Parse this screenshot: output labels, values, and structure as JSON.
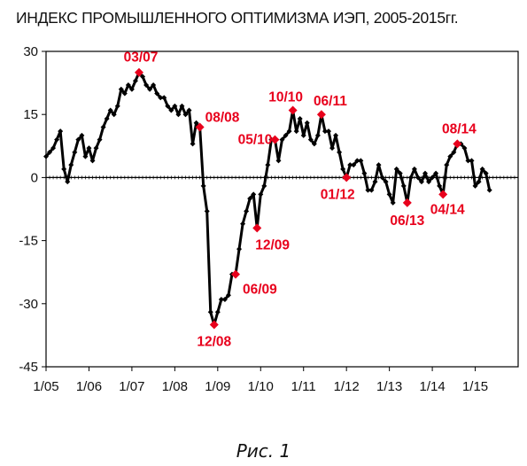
{
  "chart_data": {
    "type": "line",
    "title": "ИНДЕКС ПРОМЫШЛЕННОГО ОПТИМИЗМА ИЭП, 2005-2015гг.",
    "xlabel": "",
    "ylabel": "",
    "ylim": [
      -45,
      30
    ],
    "yticks": [
      30,
      15,
      0,
      -15,
      -30,
      -45
    ],
    "xticks": [
      "1/05",
      "1/06",
      "1/07",
      "1/08",
      "1/09",
      "1/10",
      "1/11",
      "1/12",
      "1/13",
      "1/14",
      "1/15"
    ],
    "grid": false,
    "legend": "none",
    "line_color": "#000000",
    "marker_color": "#000000",
    "highlight_color": "#e8001c",
    "series": [
      {
        "values": [
          {
            "x": "2005-01",
            "y": 5
          },
          {
            "x": "2005-02",
            "y": 6
          },
          {
            "x": "2005-03",
            "y": 7
          },
          {
            "x": "2005-04",
            "y": 9
          },
          {
            "x": "2005-05",
            "y": 11
          },
          {
            "x": "2005-06",
            "y": 2
          },
          {
            "x": "2005-07",
            "y": -1
          },
          {
            "x": "2005-08",
            "y": 3
          },
          {
            "x": "2005-09",
            "y": 6
          },
          {
            "x": "2005-10",
            "y": 9
          },
          {
            "x": "2005-11",
            "y": 10
          },
          {
            "x": "2005-12",
            "y": 5
          },
          {
            "x": "2006-01",
            "y": 7
          },
          {
            "x": "2006-02",
            "y": 4
          },
          {
            "x": "2006-03",
            "y": 7
          },
          {
            "x": "2006-04",
            "y": 9
          },
          {
            "x": "2006-05",
            "y": 12
          },
          {
            "x": "2006-06",
            "y": 14
          },
          {
            "x": "2006-07",
            "y": 16
          },
          {
            "x": "2006-08",
            "y": 15
          },
          {
            "x": "2006-09",
            "y": 17
          },
          {
            "x": "2006-10",
            "y": 21
          },
          {
            "x": "2006-11",
            "y": 20
          },
          {
            "x": "2006-12",
            "y": 22
          },
          {
            "x": "2007-01",
            "y": 21
          },
          {
            "x": "2007-02",
            "y": 23
          },
          {
            "x": "2007-03",
            "y": 25
          },
          {
            "x": "2007-04",
            "y": 24
          },
          {
            "x": "2007-05",
            "y": 22
          },
          {
            "x": "2007-06",
            "y": 21
          },
          {
            "x": "2007-07",
            "y": 22
          },
          {
            "x": "2007-08",
            "y": 20
          },
          {
            "x": "2007-09",
            "y": 19
          },
          {
            "x": "2007-10",
            "y": 19
          },
          {
            "x": "2007-11",
            "y": 17
          },
          {
            "x": "2007-12",
            "y": 16
          },
          {
            "x": "2008-01",
            "y": 17
          },
          {
            "x": "2008-02",
            "y": 15
          },
          {
            "x": "2008-03",
            "y": 17
          },
          {
            "x": "2008-04",
            "y": 15
          },
          {
            "x": "2008-05",
            "y": 16
          },
          {
            "x": "2008-06",
            "y": 8
          },
          {
            "x": "2008-07",
            "y": 13
          },
          {
            "x": "2008-08",
            "y": 12
          },
          {
            "x": "2008-09",
            "y": -2
          },
          {
            "x": "2008-10",
            "y": -8
          },
          {
            "x": "2008-11",
            "y": -32
          },
          {
            "x": "2008-12",
            "y": -35
          },
          {
            "x": "2009-01",
            "y": -32
          },
          {
            "x": "2009-02",
            "y": -29
          },
          {
            "x": "2009-03",
            "y": -29
          },
          {
            "x": "2009-04",
            "y": -28
          },
          {
            "x": "2009-05",
            "y": -23
          },
          {
            "x": "2009-06",
            "y": -23
          },
          {
            "x": "2009-07",
            "y": -17
          },
          {
            "x": "2009-08",
            "y": -11
          },
          {
            "x": "2009-09",
            "y": -8
          },
          {
            "x": "2009-10",
            "y": -5
          },
          {
            "x": "2009-11",
            "y": -4
          },
          {
            "x": "2009-12",
            "y": -12
          },
          {
            "x": "2010-01",
            "y": -4
          },
          {
            "x": "2010-02",
            "y": -2
          },
          {
            "x": "2010-03",
            "y": 3
          },
          {
            "x": "2010-04",
            "y": 9
          },
          {
            "x": "2010-05",
            "y": 9
          },
          {
            "x": "2010-06",
            "y": 4
          },
          {
            "x": "2010-07",
            "y": 9
          },
          {
            "x": "2010-08",
            "y": 10
          },
          {
            "x": "2010-09",
            "y": 11
          },
          {
            "x": "2010-10",
            "y": 16
          },
          {
            "x": "2010-11",
            "y": 11
          },
          {
            "x": "2010-12",
            "y": 14
          },
          {
            "x": "2011-01",
            "y": 10
          },
          {
            "x": "2011-02",
            "y": 13
          },
          {
            "x": "2011-03",
            "y": 9
          },
          {
            "x": "2011-04",
            "y": 8
          },
          {
            "x": "2011-05",
            "y": 10
          },
          {
            "x": "2011-06",
            "y": 15
          },
          {
            "x": "2011-07",
            "y": 11
          },
          {
            "x": "2011-08",
            "y": 11
          },
          {
            "x": "2011-09",
            "y": 7
          },
          {
            "x": "2011-10",
            "y": 10
          },
          {
            "x": "2011-11",
            "y": 6
          },
          {
            "x": "2011-12",
            "y": 2
          },
          {
            "x": "2012-01",
            "y": 0
          },
          {
            "x": "2012-02",
            "y": 3
          },
          {
            "x": "2012-03",
            "y": 3
          },
          {
            "x": "2012-04",
            "y": 4
          },
          {
            "x": "2012-05",
            "y": 4
          },
          {
            "x": "2012-06",
            "y": 1
          },
          {
            "x": "2012-07",
            "y": -3
          },
          {
            "x": "2012-08",
            "y": -3
          },
          {
            "x": "2012-09",
            "y": -1
          },
          {
            "x": "2012-10",
            "y": 3
          },
          {
            "x": "2012-11",
            "y": 0
          },
          {
            "x": "2012-12",
            "y": -1
          },
          {
            "x": "2013-01",
            "y": -4
          },
          {
            "x": "2013-02",
            "y": -6
          },
          {
            "x": "2013-03",
            "y": 2
          },
          {
            "x": "2013-04",
            "y": 1
          },
          {
            "x": "2013-05",
            "y": -2
          },
          {
            "x": "2013-06",
            "y": -6
          },
          {
            "x": "2013-07",
            "y": 0
          },
          {
            "x": "2013-08",
            "y": 2
          },
          {
            "x": "2013-09",
            "y": 0
          },
          {
            "x": "2013-10",
            "y": -1
          },
          {
            "x": "2013-11",
            "y": 1
          },
          {
            "x": "2013-12",
            "y": -1
          },
          {
            "x": "2014-01",
            "y": 0
          },
          {
            "x": "2014-02",
            "y": 1
          },
          {
            "x": "2014-03",
            "y": -2
          },
          {
            "x": "2014-04",
            "y": -4
          },
          {
            "x": "2014-05",
            "y": 3
          },
          {
            "x": "2014-06",
            "y": 5
          },
          {
            "x": "2014-07",
            "y": 6
          },
          {
            "x": "2014-08",
            "y": 8
          },
          {
            "x": "2014-09",
            "y": 8
          },
          {
            "x": "2014-10",
            "y": 7
          },
          {
            "x": "2014-11",
            "y": 4
          },
          {
            "x": "2014-12",
            "y": 4
          },
          {
            "x": "2015-01",
            "y": -2
          },
          {
            "x": "2015-02",
            "y": -1
          },
          {
            "x": "2015-03",
            "y": 2
          },
          {
            "x": "2015-04",
            "y": 1
          },
          {
            "x": "2015-05",
            "y": -3
          }
        ]
      }
    ],
    "annotations": [
      {
        "label": "03/07",
        "x": "2007-03",
        "y": 25
      },
      {
        "label": "08/08",
        "x": "2008-08",
        "y": 12
      },
      {
        "label": "12/08",
        "x": "2008-12",
        "y": -35
      },
      {
        "label": "06/09",
        "x": "2009-06",
        "y": -23
      },
      {
        "label": "12/09",
        "x": "2009-12",
        "y": -12
      },
      {
        "label": "05/10",
        "x": "2010-05",
        "y": 9
      },
      {
        "label": "10/10",
        "x": "2010-10",
        "y": 16
      },
      {
        "label": "06/11",
        "x": "2011-06",
        "y": 15
      },
      {
        "label": "01/12",
        "x": "2012-01",
        "y": 0
      },
      {
        "label": "06/13",
        "x": "2013-06",
        "y": -6
      },
      {
        "label": "04/14",
        "x": "2014-04",
        "y": -4
      },
      {
        "label": "08/14",
        "x": "2014-08",
        "y": 8
      }
    ]
  },
  "caption": "Рис. 1"
}
